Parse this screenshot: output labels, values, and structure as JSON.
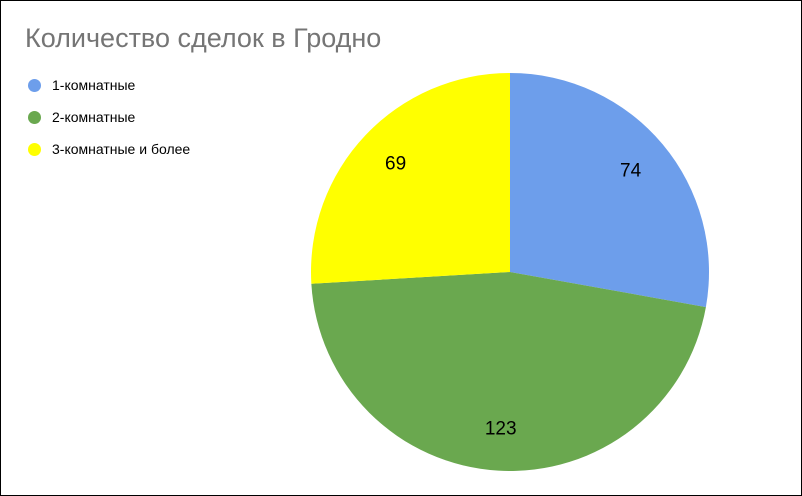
{
  "title": "Количество сделок в Гродно",
  "colors": {
    "title_text": "#757575",
    "label_text": "#000000",
    "background": "#ffffff",
    "frame_border": "#000000"
  },
  "legend": {
    "position": "top-left",
    "items": [
      {
        "label": "1-комнатные",
        "color": "#6d9eeb"
      },
      {
        "label": "2-комнатные",
        "color": "#6aa84f"
      },
      {
        "label": "3-комнатные и более",
        "color": "#ffff00"
      }
    ]
  },
  "chart_data": {
    "type": "pie",
    "title": "Количество сделок в Гродно",
    "categories": [
      "1-комнатные",
      "2-комнатные",
      "3-комнатные и более"
    ],
    "values": [
      74,
      123,
      69
    ],
    "colors": [
      "#6d9eeb",
      "#6aa84f",
      "#ffff00"
    ],
    "total": 266,
    "data_labels": "value",
    "data_label_color": "#000000",
    "start_angle_deg": 0,
    "direction": "clockwise",
    "legend_position": "top-left",
    "grid": false
  }
}
